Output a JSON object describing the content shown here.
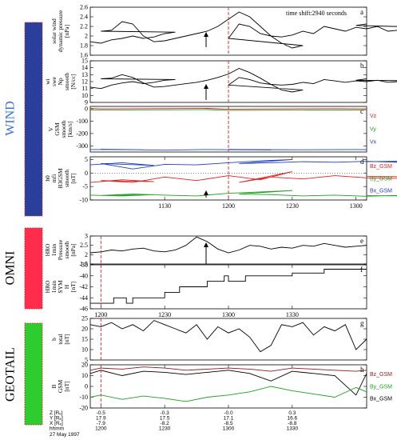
{
  "chart_data": {
    "type": "line",
    "time_shift": "time shift:2940 seconds",
    "missions": [
      {
        "name": "WIND",
        "color": "#2a3f9c"
      },
      {
        "name": "OMNI",
        "color": "#ff2d4b"
      },
      {
        "name": "GEOTAIL",
        "color": "#2ecc2e"
      }
    ],
    "panels": [
      {
        "id": "a",
        "letter": "a",
        "ylabel": [
          "solar wind",
          "dynamic pressure",
          "[nPa]"
        ],
        "ylim": [
          1.6,
          2.6
        ],
        "yticks": [
          1.6,
          1.8,
          2.0,
          2.2,
          2.4,
          2.6
        ],
        "series": [
          {
            "color": "#000000",
            "x": [
              1055,
              1060,
              1065,
              1070,
              1075,
              1080,
              1085,
              1090,
              1095,
              1100,
              1105,
              1110,
              1115,
              1120,
              1125,
              1130,
              1135,
              1140,
              1145,
              1150,
              1155,
              1160,
              1165,
              1170,
              1175,
              1180,
              1185,
              1190,
              1195,
              1200,
              1205,
              1210,
              1215,
              1220,
              1225,
              1230,
              1235,
              1240,
              1245,
              1250,
              1255,
              1260,
              1265,
              1270,
              1275,
              1280,
              1285,
              1290,
              1295,
              1300,
              1305
            ],
            "y": [
              1.88,
              1.85,
              1.92,
              1.95,
              2.0,
              1.95,
              1.98,
              2.05,
              2.08,
              2.1,
              2.12,
              2.3,
              2.25,
              2.0,
              1.88,
              1.9,
              1.95,
              2.0,
              2.05,
              2.1,
              2.2,
              2.35,
              2.5,
              2.4,
              2.2,
              2.0,
              1.85,
              1.75,
              1.8,
              1.95,
              2.25,
              2.2,
              2.05,
              2.0,
              1.98,
              2.02,
              2.1,
              2.05,
              2.2,
              2.15,
              2.1,
              2.18,
              2.15,
              2.2,
              2.1,
              2.12,
              2.2,
              2.3,
              2.18,
              2.22,
              2.25
            ]
          }
        ]
      },
      {
        "id": "b",
        "letter": "b",
        "ylabel": [
          "wi",
          "swe",
          "Np",
          "smooth",
          "[N/cc]"
        ],
        "ylim": [
          9,
          15
        ],
        "yticks": [
          9,
          10,
          11,
          12,
          13,
          14,
          15
        ],
        "series": [
          {
            "color": "#000000",
            "x": [
              1055,
              1060,
              1065,
              1070,
              1075,
              1080,
              1085,
              1090,
              1095,
              1100,
              1105,
              1110,
              1115,
              1120,
              1125,
              1130,
              1135,
              1140,
              1145,
              1150,
              1155,
              1160,
              1165,
              1170,
              1175,
              1180,
              1185,
              1190,
              1195,
              1200,
              1205,
              1210,
              1215,
              1220,
              1225,
              1230,
              1235,
              1240,
              1245,
              1250,
              1255,
              1260,
              1265,
              1270,
              1275,
              1280,
              1285,
              1290,
              1295,
              1300,
              1305
            ],
            "y": [
              11.2,
              11.0,
              11.5,
              11.8,
              12.0,
              11.7,
              11.9,
              12.2,
              12.3,
              12.4,
              12.5,
              13.0,
              12.6,
              11.8,
              11.2,
              11.3,
              11.5,
              11.7,
              11.9,
              12.2,
              12.6,
              13.1,
              13.9,
              13.3,
              12.5,
              11.6,
              10.8,
              10.5,
              10.8,
              11.5,
              12.6,
              12.3,
              11.8,
              11.6,
              11.5,
              11.6,
              11.9,
              11.7,
              12.3,
              12.1,
              11.9,
              12.1,
              12.0,
              12.2,
              11.9,
              12.0,
              12.3,
              12.6,
              12.1,
              12.2,
              12.4
            ]
          }
        ]
      },
      {
        "id": "c",
        "letter": "c",
        "ylabel": [
          "V",
          "GSM",
          "smooth",
          "[km/s]"
        ],
        "ylim": [
          -350,
          20
        ],
        "yticks": [
          0,
          -100,
          -200,
          -300
        ],
        "legend": [
          {
            "text": "Vz",
            "color": "#e02020"
          },
          {
            "text": "Vy",
            "color": "#20a020"
          },
          {
            "text": "Vx",
            "color": "#2040c0"
          }
        ],
        "series": [
          {
            "name": "Vz",
            "color": "#e02020",
            "x": [
              1055,
              1100,
              1150,
              1200,
              1250,
              1305
            ],
            "y": [
              3,
              0,
              4,
              -2,
              2,
              0
            ]
          },
          {
            "name": "Vy",
            "color": "#20a020",
            "x": [
              1055,
              1100,
              1150,
              1200,
              1250,
              1305
            ],
            "y": [
              -8,
              -10,
              -6,
              -12,
              -9,
              -10
            ]
          },
          {
            "name": "Vx",
            "color": "#2040c0",
            "x": [
              1055,
              1080,
              1100,
              1130,
              1150,
              1180,
              1200,
              1230,
              1260,
              1305
            ],
            "y": [
              -330,
              -332,
              -328,
              -335,
              -330,
              -333,
              -329,
              -332,
              -330,
              -331
            ]
          }
        ]
      },
      {
        "id": "d",
        "letter": "d",
        "ylabel": [
          "h0",
          "mfi",
          "B3GSM",
          "smooth",
          "[nT]"
        ],
        "ylim": [
          -10,
          6
        ],
        "yticks": [
          5,
          0,
          -5,
          -10
        ],
        "zero_line": true,
        "legend": [
          {
            "text": "Bz_GSM",
            "color": "#e02020"
          },
          {
            "text": "By_GSM",
            "color": "#20a020"
          },
          {
            "text": "Bx_GSM",
            "color": "#2040c0"
          }
        ],
        "xticks": [
          1130,
          1200,
          1230,
          1300
        ],
        "xtick_labels": [
          "1130",
          "1200",
          "1230",
          "1300"
        ],
        "series": [
          {
            "name": "Bx_GSM",
            "color": "#2040c0",
            "x": [
              1055,
              1070,
              1085,
              1100,
              1115,
              1130,
              1145,
              1160,
              1175,
              1190,
              1205,
              1220,
              1235,
              1250,
              1265,
              1280,
              1295,
              1305
            ],
            "y": [
              3.0,
              3.8,
              2.8,
              3.5,
              1.5,
              3.2,
              3.0,
              3.8,
              4.5,
              5.0,
              3.5,
              3.8,
              4.2,
              4.0,
              4.3,
              4.0,
              4.5,
              4.2
            ]
          },
          {
            "name": "Bz_GSM",
            "color": "#e02020",
            "x": [
              1055,
              1070,
              1085,
              1100,
              1115,
              1130,
              1145,
              1160,
              1175,
              1190,
              1205,
              1220,
              1235,
              1250,
              1265,
              1280,
              1295,
              1305
            ],
            "y": [
              -3.5,
              -2.5,
              -3.2,
              -2.8,
              -3.5,
              -1.5,
              -2.8,
              -1.0,
              -2.5,
              0.5,
              -3.5,
              -1.5,
              -2.2,
              -1.0,
              -1.8,
              -2.0,
              -1.5,
              -1.2
            ]
          },
          {
            "name": "By_GSM",
            "color": "#20a020",
            "x": [
              1055,
              1070,
              1085,
              1100,
              1115,
              1130,
              1145,
              1160,
              1175,
              1190,
              1205,
              1220,
              1235,
              1250,
              1265,
              1280,
              1295,
              1305
            ],
            "y": [
              -8.2,
              -8.5,
              -8.0,
              -8.3,
              -7.8,
              -8.2,
              -8.5,
              -7.5,
              -7.0,
              -6.5,
              -7.8,
              -8.0,
              -8.5,
              -8.2,
              -8.6,
              -8.3,
              -8.5,
              -8.4
            ]
          }
        ]
      },
      {
        "id": "e",
        "letter": "e",
        "ylabel": [
          "HRO",
          "1min",
          "Pressure",
          "smooth",
          "[nPa]"
        ],
        "ylim": [
          1.5,
          3.0
        ],
        "yticks": [
          1.5,
          2.0,
          2.5,
          3.0
        ],
        "series": [
          {
            "color": "#000000",
            "x": [
              1155,
              1200,
              1205,
              1210,
              1215,
              1220,
              1225,
              1230,
              1235,
              1240,
              1245,
              1250,
              1255,
              1300,
              1305,
              1310,
              1315,
              1320,
              1325,
              1330,
              1335,
              1340,
              1345,
              1350,
              1355,
              1360,
              1365
            ],
            "y": [
              2.1,
              2.15,
              2.25,
              2.2,
              2.3,
              2.35,
              2.2,
              2.15,
              2.25,
              2.5,
              2.95,
              2.7,
              2.3,
              2.1,
              2.25,
              2.5,
              2.45,
              2.3,
              2.4,
              2.35,
              2.5,
              2.45,
              2.6,
              2.5,
              2.4,
              2.45,
              2.5
            ]
          }
        ]
      },
      {
        "id": "f",
        "letter": "f",
        "ylabel": [
          "HRO",
          "1min",
          "SYM",
          "H",
          "[nT]"
        ],
        "ylim": [
          -46,
          -38
        ],
        "yticks": [
          -38,
          -40,
          -42,
          -44,
          -46
        ],
        "xticks": [
          1200,
          1230,
          1300,
          1330
        ],
        "xtick_labels": [
          "1200",
          "1230",
          "1300",
          "1330"
        ],
        "series": [
          {
            "color": "#000000",
            "x": [
              1155,
              1206,
              1206,
              1212,
              1212,
              1215,
              1215,
              1230,
              1230,
              1237,
              1237,
              1250,
              1250,
              1258,
              1258,
              1300,
              1300,
              1308,
              1308,
              1330,
              1330,
              1345,
              1345,
              1365
            ],
            "y": [
              -45,
              -45,
              -44,
              -44,
              -45,
              -45,
              -44,
              -44,
              -43,
              -43,
              -42,
              -42,
              -41,
              -41,
              -40,
              -40,
              -41,
              -41,
              -40,
              -40,
              -39.5,
              -39.5,
              -38.8,
              -38.8
            ]
          }
        ]
      },
      {
        "id": "g",
        "letter": "g",
        "ylabel": [
          "b",
          "total",
          "[nT]"
        ],
        "ylim": [
          5,
          25
        ],
        "yticks": [
          5,
          10,
          15,
          20,
          25
        ],
        "series": [
          {
            "color": "#000000",
            "x": [
              1155,
              1200,
              1205,
              1210,
              1215,
              1220,
              1225,
              1230,
              1235,
              1240,
              1245,
              1250,
              1255,
              1300,
              1305,
              1310,
              1315,
              1320,
              1325,
              1330,
              1335,
              1340,
              1345,
              1350,
              1355,
              1360,
              1365
            ],
            "y": [
              22,
              21,
              23,
              20,
              22,
              19,
              24,
              22,
              20,
              18,
              22,
              15,
              21,
              18,
              20,
              16,
              9,
              12,
              22,
              21,
              23,
              17,
              21,
              19,
              22,
              10,
              15
            ]
          }
        ]
      },
      {
        "id": "h",
        "letter": "h",
        "ylabel": [
          "B",
          "GSM",
          "[nT]"
        ],
        "ylim": [
          -20,
          20
        ],
        "yticks": [
          20,
          10,
          0,
          -10,
          -20
        ],
        "legend": [
          {
            "text": "Bz_GSM",
            "color": "#8b1a1a"
          },
          {
            "text": "By_GSM",
            "color": "#20a020"
          },
          {
            "text": "Bx_GSM",
            "color": "#000000"
          }
        ],
        "xticks": [
          1200,
          1230,
          1300,
          1330
        ],
        "series": [
          {
            "name": "Bz_GSM",
            "color": "#8b1a1a",
            "x": [
              1155,
              1200,
              1210,
              1220,
              1230,
              1240,
              1250,
              1300,
              1310,
              1320,
              1330,
              1340,
              1350,
              1360,
              1365
            ],
            "y": [
              15,
              17,
              16,
              18,
              17,
              15,
              16,
              17,
              16,
              14,
              17,
              16,
              15,
              14,
              15
            ]
          },
          {
            "name": "Bx_GSM",
            "color": "#000000",
            "x": [
              1155,
              1200,
              1210,
              1220,
              1230,
              1240,
              1250,
              1300,
              1310,
              1320,
              1330,
              1340,
              1350,
              1360,
              1365
            ],
            "y": [
              12,
              15,
              10,
              14,
              13,
              11,
              13,
              15,
              12,
              5,
              14,
              12,
              10,
              -8,
              12
            ]
          },
          {
            "name": "By_GSM",
            "color": "#20a020",
            "x": [
              1155,
              1200,
              1210,
              1220,
              1230,
              1240,
              1250,
              1300,
              1310,
              1320,
              1330,
              1340,
              1350,
              1360,
              1365
            ],
            "y": [
              -10,
              -8,
              -12,
              -9,
              -11,
              -14,
              -10,
              -8,
              -5,
              0,
              -4,
              -7,
              -10,
              -1,
              -5
            ]
          }
        ]
      }
    ],
    "event_time": 1200,
    "ephemeris": {
      "rows": [
        {
          "label": "Z [Rₑ]",
          "values": [
            "-0.5",
            "-0.3",
            "-0.0",
            "0.3"
          ]
        },
        {
          "label": "Y [Rₑ]",
          "values": [
            "17.9",
            "17.5",
            "17.1",
            "16.6"
          ]
        },
        {
          "label": "X [Rₑ]",
          "values": [
            "-7.9",
            "-8.2",
            "-8.5",
            "-8.8"
          ]
        },
        {
          "label": "hhmm",
          "values": [
            "1200",
            "1230",
            "1300",
            "1330"
          ]
        }
      ],
      "date": "27 May 1997"
    }
  }
}
